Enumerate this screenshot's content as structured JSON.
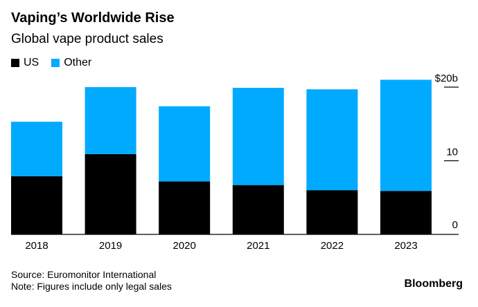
{
  "chart_data": {
    "type": "bar",
    "stacked": true,
    "title": "Vaping’s Worldwide Rise",
    "subtitle": "Global vape product sales",
    "categories": [
      "2018",
      "2019",
      "2020",
      "2021",
      "2022",
      "2023"
    ],
    "series": [
      {
        "name": "US",
        "color": "#000000",
        "values": [
          7.9,
          10.9,
          7.2,
          6.7,
          6.0,
          5.9
        ]
      },
      {
        "name": "Other",
        "color": "#00aaff",
        "values": [
          7.4,
          9.1,
          10.2,
          13.2,
          13.7,
          15.1
        ]
      }
    ],
    "ylim": [
      0,
      21.5
    ],
    "yticks": [
      {
        "value": 0,
        "label": "0"
      },
      {
        "value": 10,
        "label": "10"
      },
      {
        "value": 20,
        "label": "$20b"
      }
    ],
    "legend": "top-left",
    "source": "Source: Euromonitor International",
    "note": "Note: Figures include only legal sales",
    "brand": "Bloomberg"
  }
}
